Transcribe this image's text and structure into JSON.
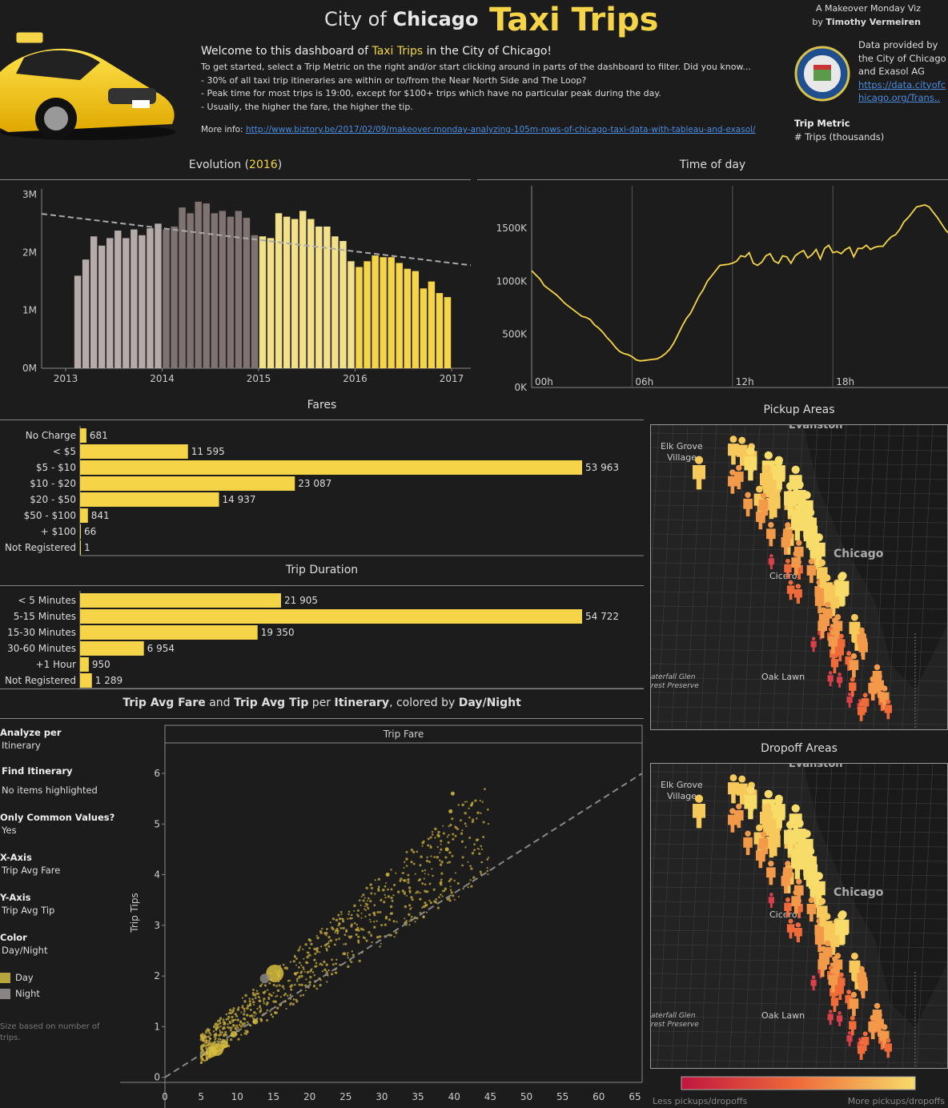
{
  "header": {
    "title_prefix": "City of",
    "title_city": "Chicago",
    "title_main": "Taxi Trips",
    "credit_line1": "A Makeover Monday Viz",
    "credit_by": "by",
    "credit_author": "Timothy Vermeiren",
    "welcome_pre": "Welcome to this dashboard of",
    "welcome_highlight": "Taxi Trips",
    "welcome_post": "in the City of Chicago!",
    "intro_line1": "To get started, select a Trip Metric on the right and/or start clicking around in parts of the dashboard to filter. Did you know...",
    "intro_line2": "-  30% of all taxi trip itineraries are within or to/from the Near North Side and The Loop?",
    "intro_line3": "- Peak time for most trips is 19:00, except for $100+ trips which have no particular peak during the day.",
    "intro_line4": "- Usually, the higher the fare, the higher the tip.",
    "more_info_label": "More info:",
    "more_info_link": "http://www.biztory.be/2017/02/09/makeover-monday-analyzing-105m-rows-of-chicago-taxi-data-with-tableau-and-exasol/",
    "data_provided": "Data provided by the City of Chicago and Exasol AG",
    "data_link": "https://data.cityofchicago.org/Trans..",
    "trip_metric_label": "Trip Metric",
    "trip_metric_value": "# Trips (thousands)"
  },
  "evolution": {
    "title_pre": "Evolution (",
    "title_year": "2016",
    "title_post": ")"
  },
  "time_of_day": {
    "title": "Time of day"
  },
  "fares": {
    "title": "Fares"
  },
  "duration": {
    "title": "Trip Duration"
  },
  "scatter": {
    "title_html_parts": [
      "Trip Avg Fare",
      " and ",
      "Trip Avg  Tip",
      " per ",
      "Itinerary",
      ", colored by ",
      "Day/Night"
    ],
    "panel_header": "Trip Fare"
  },
  "sidebar": {
    "analyze_label": "Analyze per",
    "analyze_value": "Itinerary",
    "find_label": "Find Itinerary",
    "find_value": "No items highlighted",
    "common_label": "Only Common Values?",
    "common_value": "Yes",
    "xaxis_label": "X-Axis",
    "xaxis_value": "Trip Avg Fare",
    "yaxis_label": "Y-Axis",
    "yaxis_value": "Trip Avg  Tip",
    "color_label": "Color",
    "color_value": "Day/Night",
    "legend_day": "Day",
    "legend_night": "Night",
    "size_note": "Size based on number of trips."
  },
  "maps": {
    "pickup_title": "Pickup Areas",
    "dropoff_title": "Dropoff Areas",
    "place_elk": "Elk Grove",
    "place_village": "Village",
    "place_evanston": "Evanston",
    "place_chicago": "Chicago",
    "place_cicero": "Cicero",
    "place_oaklawn": "Oak Lawn",
    "place_waterfall": "aterfall Glen",
    "place_preserve": "rest Preserve",
    "legend_less": "Less pickups/dropoffs",
    "legend_more": "More pickups/dropoffs"
  },
  "colors": {
    "accent": "#f5d547",
    "night": "#8a8584",
    "map_low": "#c0163f",
    "map_high": "#f7dc6a"
  },
  "chart_data": [
    {
      "type": "bar",
      "id": "evolution",
      "x_ticks": [
        "2013",
        "2014",
        "2015",
        "2016",
        "2017"
      ],
      "y_ticks": [
        "0M",
        "1M",
        "2M",
        "3M"
      ],
      "ylim": [
        0,
        3.1
      ],
      "y_unit": "millions of trips",
      "series": [
        {
          "name": "2013",
          "values": [
            1.6,
            1.88,
            2.28,
            2.12,
            2.25,
            2.38,
            2.25,
            2.4,
            2.3,
            2.42,
            2.5
          ]
        },
        {
          "name": "2014",
          "values": [
            2.4,
            2.45,
            2.78,
            2.68,
            2.88,
            2.85,
            2.68,
            2.72,
            2.62,
            2.72,
            2.6,
            2.3
          ]
        },
        {
          "name": "2015",
          "values": [
            2.28,
            2.25,
            2.68,
            2.62,
            2.58,
            2.72,
            2.58,
            2.45,
            2.45,
            2.28,
            2.2,
            1.85
          ]
        },
        {
          "name": "2016",
          "values": [
            1.75,
            1.85,
            1.95,
            1.92,
            1.92,
            1.82,
            1.72,
            1.68,
            1.38,
            1.5,
            1.3,
            1.23
          ]
        }
      ],
      "trend_line": {
        "start": 2.67,
        "end": 1.78
      }
    },
    {
      "type": "line",
      "id": "time_of_day",
      "x_ticks": [
        "00h",
        "06h",
        "12h",
        "18h"
      ],
      "y_ticks": [
        "0K",
        "500K",
        "1000K",
        "1500K"
      ],
      "ylim": [
        0,
        1900
      ],
      "x_hours_step": 0.25,
      "values": [
        1100,
        1060,
        1020,
        960,
        930,
        900,
        870,
        830,
        790,
        760,
        730,
        700,
        670,
        660,
        640,
        590,
        560,
        520,
        470,
        430,
        380,
        340,
        320,
        310,
        290,
        260,
        250,
        255,
        260,
        265,
        270,
        290,
        320,
        360,
        420,
        500,
        580,
        650,
        700,
        780,
        860,
        920,
        1000,
        1050,
        1100,
        1150,
        1155,
        1160,
        1170,
        1190,
        1240,
        1230,
        1270,
        1170,
        1150,
        1180,
        1240,
        1260,
        1190,
        1170,
        1240,
        1230,
        1170,
        1240,
        1270,
        1290,
        1220,
        1250,
        1300,
        1210,
        1310,
        1340,
        1270,
        1280,
        1260,
        1300,
        1320,
        1230,
        1310,
        1310,
        1340,
        1300,
        1320,
        1330,
        1330,
        1380,
        1420,
        1440,
        1490,
        1560,
        1600,
        1650,
        1700,
        1710,
        1720,
        1700,
        1650,
        1600,
        1540,
        1480,
        1440,
        1380,
        1320,
        1290,
        1270,
        1260,
        1240,
        1200,
        1180,
        1150,
        1130,
        1110,
        1090,
        1060,
        1040,
        1020,
        1000,
        1180,
        1150,
        1150,
        1140,
        1130
      ]
    },
    {
      "type": "bar",
      "id": "fares",
      "orientation": "horizontal",
      "categories": [
        "No Charge",
        "< $5",
        "$5 - $10",
        "$10 - $20",
        "$20 - $50",
        "$50 - $100",
        "+ $100",
        "Not Registered"
      ],
      "values": [
        681,
        11595,
        53963,
        23087,
        14937,
        841,
        66,
        1
      ],
      "labels": [
        "681",
        "11 595",
        "53 963",
        "23 087",
        "14 937",
        "841",
        "66",
        "1"
      ]
    },
    {
      "type": "bar",
      "id": "trip_duration",
      "orientation": "horizontal",
      "categories": [
        "< 5 Minutes",
        "5-15 Minutes",
        "15-30 Minutes",
        "30-60 Minutes",
        "+1 Hour",
        "Not Registered"
      ],
      "values": [
        21905,
        54722,
        19350,
        6954,
        950,
        1289
      ],
      "labels": [
        "21 905",
        "54 722",
        "19 350",
        "6 954",
        "950",
        "1 289"
      ]
    },
    {
      "type": "scatter",
      "id": "fare_vs_tip",
      "xlabel": "Trip Fare",
      "ylabel": "Trip Tips",
      "x_ticks": [
        "0",
        "5",
        "10",
        "15",
        "20",
        "25",
        "30",
        "35",
        "40",
        "45",
        "50",
        "55",
        "60",
        "65"
      ],
      "y_ticks": [
        "0",
        "1",
        "2",
        "3",
        "4",
        "5",
        "6"
      ],
      "xlim": [
        0,
        66
      ],
      "ylim": [
        -0.1,
        6.6
      ],
      "reference_line": {
        "from": [
          0,
          0
        ],
        "to": [
          66,
          6.0
        ]
      },
      "highlight_points": [
        {
          "x": 15.2,
          "y": 2.05,
          "size": 22,
          "group": "Day"
        },
        {
          "x": 13.8,
          "y": 1.95,
          "size": 12,
          "group": "Night"
        },
        {
          "x": 39.8,
          "y": 5.6,
          "size": 5,
          "group": "Day"
        },
        {
          "x": 39.5,
          "y": 5.25,
          "size": 5,
          "group": "Day"
        },
        {
          "x": 39.0,
          "y": 4.5,
          "size": 5,
          "group": "Day"
        },
        {
          "x": 30.8,
          "y": 4.0,
          "size": 5,
          "group": "Day"
        },
        {
          "x": 7.2,
          "y": 0.55,
          "size": 16,
          "group": "Day"
        },
        {
          "x": 6.4,
          "y": 0.5,
          "size": 14,
          "group": "Day"
        },
        {
          "x": 8.2,
          "y": 0.65,
          "size": 10,
          "group": "Day"
        },
        {
          "x": 9.5,
          "y": 0.85,
          "size": 8,
          "group": "Day"
        },
        {
          "x": 12.5,
          "y": 1.1,
          "size": 7,
          "group": "Day"
        }
      ]
    }
  ]
}
